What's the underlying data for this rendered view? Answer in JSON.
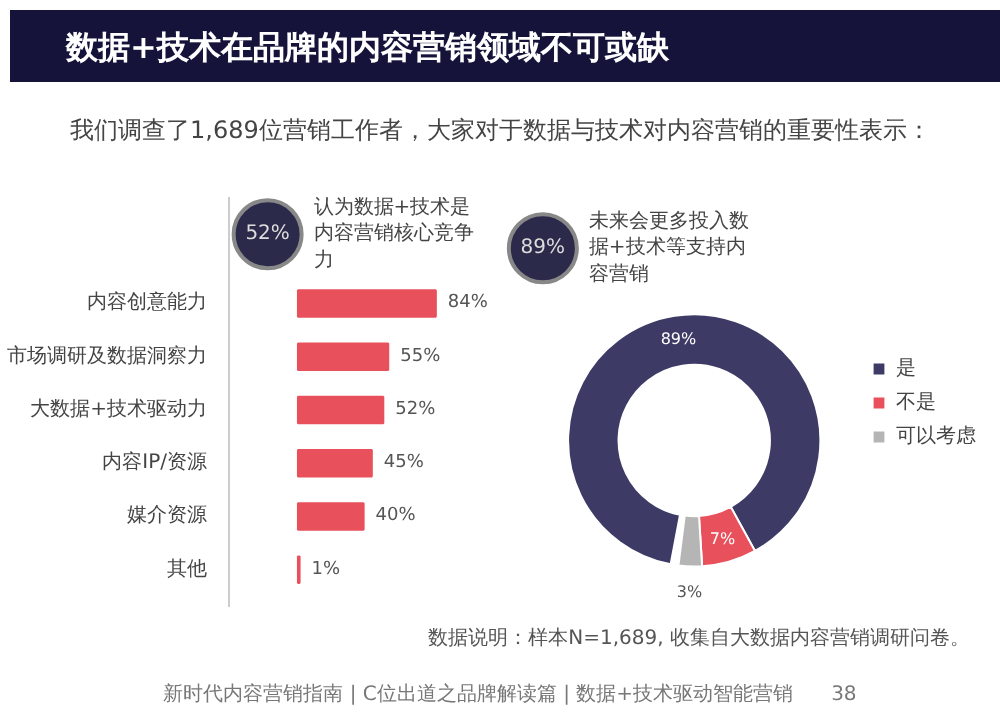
{
  "chart_data": [
    {
      "type": "bar",
      "orientation": "horizontal",
      "title": "数据+技术在品牌的内容营销领域不可或缺",
      "subtitle": "我们调查了1,689位营销工作者，大家对于数据与技术对内容营销的重要性表示：",
      "categories": [
        "内容创意能力",
        "市场调研及数据洞察力",
        "大数据+技术驱动力",
        "内容IP/资源",
        "媒介资源",
        "其他"
      ],
      "values": [
        84,
        55,
        52,
        45,
        40,
        1
      ],
      "value_labels": [
        "84%",
        "55%",
        "52%",
        "45%",
        "40%",
        "1%"
      ],
      "color": "#e8505b",
      "annotations": [
        "52%",
        "认为数据+技术是内容营销核心竞争力"
      ]
    },
    {
      "type": "donut",
      "categories": [
        "是",
        "不是",
        "可以考虑"
      ],
      "values": [
        89,
        7,
        3
      ],
      "colors": [
        "#3d3b66",
        "#e8505b",
        "#b5b5b5"
      ],
      "value_labels": [
        "89%",
        "7%",
        "3%"
      ],
      "legend": "right",
      "annotations": [
        "89%",
        "未来会更多投入数据+技术等支持内容营销",
        "数据说明：样本N=1,689, 收集自大数据内容营销调研问卷。",
        "新时代内容营销指南 | C位出道之品牌解读篇 | 数据+技术驱动智能营销",
        "38"
      ]
    }
  ]
}
